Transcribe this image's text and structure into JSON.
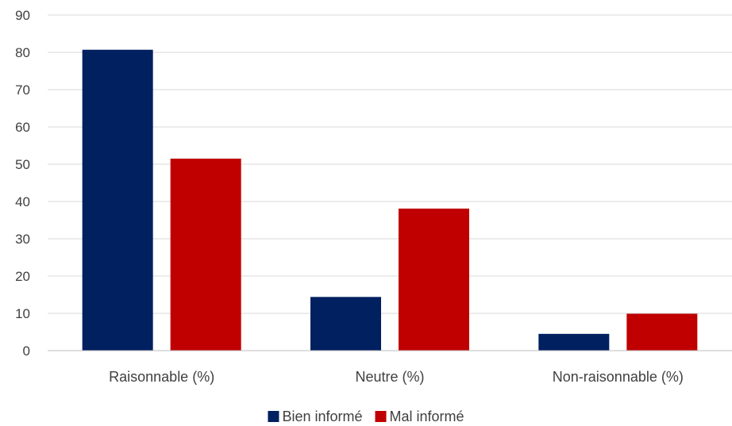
{
  "chart_data": {
    "type": "bar",
    "title": "",
    "xlabel": "",
    "ylabel": "",
    "ylim": [
      0,
      90
    ],
    "yticks": [
      0,
      10,
      20,
      30,
      40,
      50,
      60,
      70,
      80,
      90
    ],
    "grid": true,
    "legend_position": "bottom",
    "categories": [
      "Raisonnable (%)",
      "Neutre (%)",
      "Non-raisonnable (%)"
    ],
    "series": [
      {
        "name": "Bien informé",
        "color": "#002060",
        "values": [
          80.7,
          14.4,
          4.5
        ]
      },
      {
        "name": "Mal informé",
        "color": "#c00000",
        "values": [
          51.5,
          38.1,
          9.9
        ]
      }
    ]
  }
}
